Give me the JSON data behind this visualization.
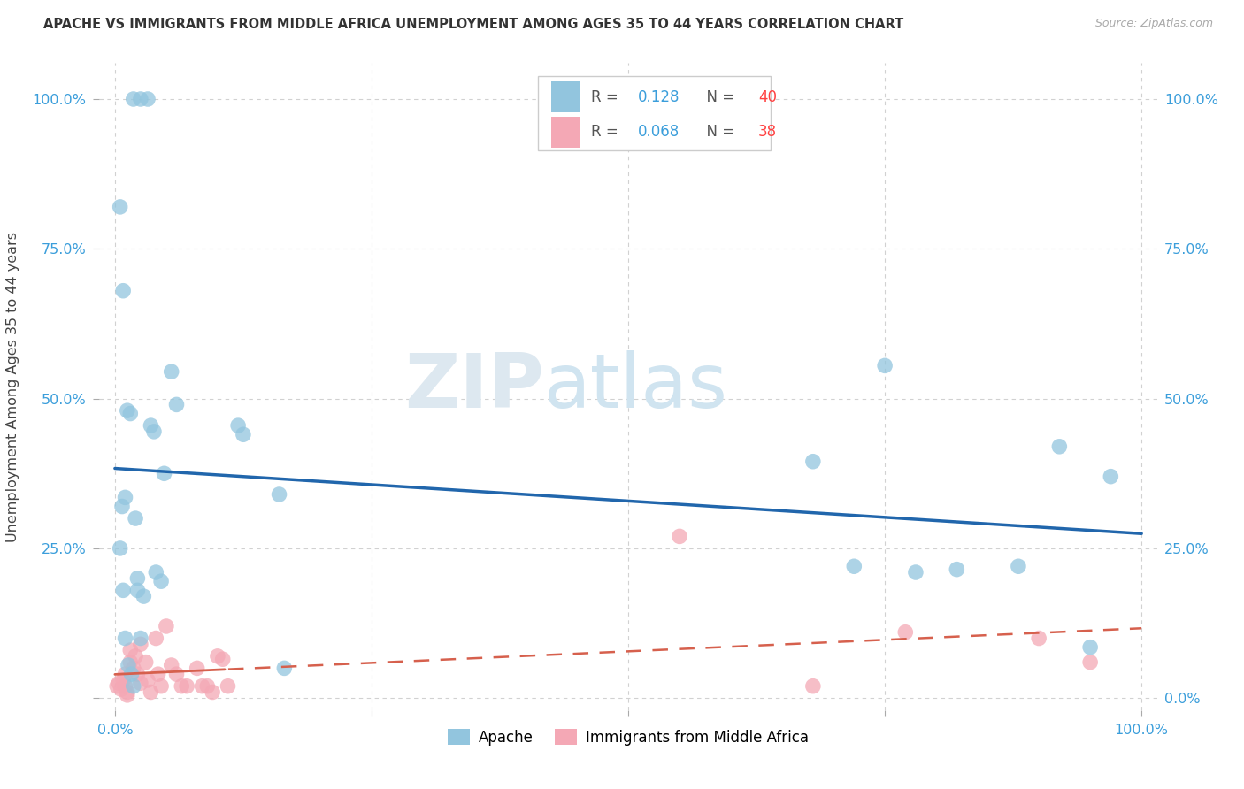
{
  "title": "APACHE VS IMMIGRANTS FROM MIDDLE AFRICA UNEMPLOYMENT AMONG AGES 35 TO 44 YEARS CORRELATION CHART",
  "source": "Source: ZipAtlas.com",
  "ylabel": "Unemployment Among Ages 35 to 44 years",
  "xlim": [
    -0.02,
    1.02
  ],
  "ylim": [
    -0.02,
    1.08
  ],
  "xticks": [
    0.0,
    0.25,
    0.5,
    0.75,
    1.0
  ],
  "xticklabels": [
    "0.0%",
    "",
    "",
    "",
    "100.0%"
  ],
  "yticks": [
    0.0,
    0.25,
    0.5,
    0.75,
    1.0
  ],
  "yticklabels_left": [
    "",
    "25.0%",
    "50.0%",
    "75.0%",
    "100.0%"
  ],
  "yticklabels_right": [
    "0.0%",
    "25.0%",
    "50.0%",
    "75.0%",
    "100.0%"
  ],
  "legend_apache": "Apache",
  "legend_immigrants": "Immigrants from Middle Africa",
  "r_apache": "0.128",
  "n_apache": "40",
  "r_immigrants": "0.068",
  "n_immigrants": "38",
  "apache_color": "#92C5DE",
  "immigrants_color": "#F4A8B5",
  "apache_line_color": "#2166AC",
  "immigrants_line_color": "#D6604D",
  "watermark_zip": "ZIP",
  "watermark_atlas": "atlas",
  "apache_x": [
    0.018,
    0.025,
    0.032,
    0.005,
    0.008,
    0.012,
    0.015,
    0.01,
    0.007,
    0.02,
    0.022,
    0.028,
    0.035,
    0.038,
    0.04,
    0.045,
    0.12,
    0.125,
    0.16,
    0.165,
    0.68,
    0.72,
    0.75,
    0.78,
    0.82,
    0.88,
    0.92,
    0.95,
    0.97,
    0.005,
    0.008,
    0.01,
    0.013,
    0.016,
    0.018,
    0.022,
    0.025,
    0.048,
    0.055,
    0.06
  ],
  "apache_y": [
    1.0,
    1.0,
    1.0,
    0.82,
    0.68,
    0.48,
    0.475,
    0.335,
    0.32,
    0.3,
    0.2,
    0.17,
    0.455,
    0.445,
    0.21,
    0.195,
    0.455,
    0.44,
    0.34,
    0.05,
    0.395,
    0.22,
    0.555,
    0.21,
    0.215,
    0.22,
    0.42,
    0.085,
    0.37,
    0.25,
    0.18,
    0.1,
    0.055,
    0.04,
    0.02,
    0.18,
    0.1,
    0.375,
    0.545,
    0.49
  ],
  "immigrants_x": [
    0.002,
    0.004,
    0.006,
    0.008,
    0.01,
    0.01,
    0.012,
    0.012,
    0.015,
    0.015,
    0.018,
    0.02,
    0.022,
    0.025,
    0.025,
    0.03,
    0.032,
    0.035,
    0.04,
    0.042,
    0.045,
    0.05,
    0.055,
    0.06,
    0.065,
    0.07,
    0.08,
    0.085,
    0.09,
    0.095,
    0.1,
    0.105,
    0.11,
    0.55,
    0.68,
    0.77,
    0.9,
    0.95
  ],
  "immigrants_y": [
    0.02,
    0.025,
    0.015,
    0.03,
    0.04,
    0.02,
    0.01,
    0.005,
    0.08,
    0.06,
    0.05,
    0.07,
    0.04,
    0.09,
    0.025,
    0.06,
    0.03,
    0.01,
    0.1,
    0.04,
    0.02,
    0.12,
    0.055,
    0.04,
    0.02,
    0.02,
    0.05,
    0.02,
    0.02,
    0.01,
    0.07,
    0.065,
    0.02,
    0.27,
    0.02,
    0.11,
    0.1,
    0.06
  ]
}
